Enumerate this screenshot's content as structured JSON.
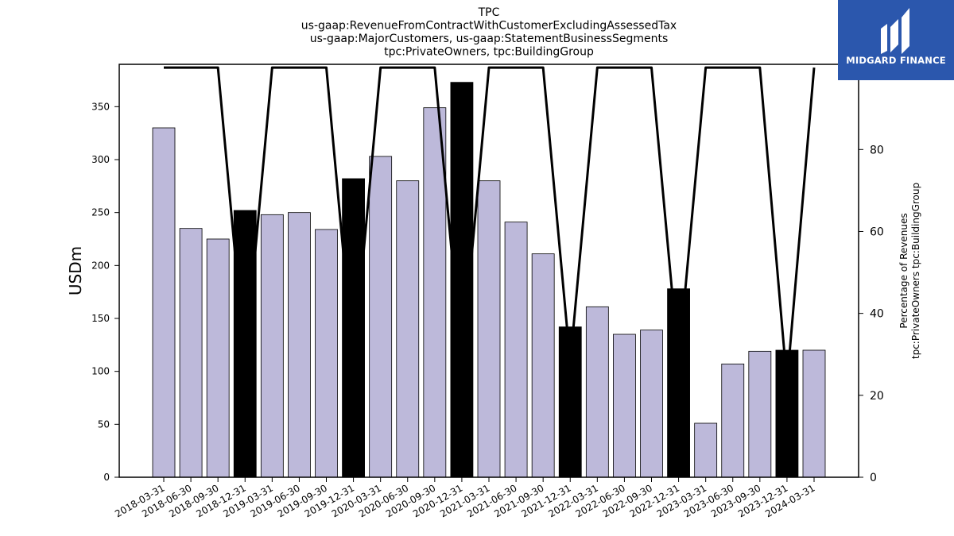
{
  "logo": {
    "text": "MIDGARD FINANCE",
    "icon": "midgard-logo-icon",
    "background": "#2b57ad"
  },
  "chart_data": {
    "type": "bar",
    "title": [
      "TPC",
      "us-gaap:RevenueFromContractWithCustomerExcludingAssessedTax",
      "us-gaap:MajorCustomers, us-gaap:StatementBusinessSegments",
      "tpc:PrivateOwners, tpc:BuildingGroup"
    ],
    "ylabel": "USDm",
    "y2label": [
      "Percentage of Revenues",
      "tpc:PrivateOwners tpc:BuildingGroup"
    ],
    "ylim": [
      0,
      390
    ],
    "y2lim": [
      0,
      100.8
    ],
    "yticks": [
      0,
      50,
      100,
      150,
      200,
      250,
      300,
      350
    ],
    "y2ticks": [
      0,
      20,
      40,
      60,
      80,
      100
    ],
    "grid": false,
    "categories": [
      "2018-03-31",
      "2018-06-30",
      "2018-09-30",
      "2018-12-31",
      "2019-03-31",
      "2019-06-30",
      "2019-09-30",
      "2019-12-31",
      "2020-03-31",
      "2020-06-30",
      "2020-09-30",
      "2020-12-31",
      "2021-03-31",
      "2021-06-30",
      "2021-09-30",
      "2021-12-31",
      "2022-03-31",
      "2022-06-30",
      "2022-09-30",
      "2022-12-31",
      "2023-03-31",
      "2023-06-30",
      "2023-09-30",
      "2023-12-31",
      "2024-03-31"
    ],
    "series": [
      {
        "kind": "bar",
        "values": [
          330,
          235,
          225,
          252,
          248,
          250,
          234,
          282,
          303,
          280,
          349,
          373,
          280,
          241,
          211,
          142,
          161,
          135,
          139,
          178,
          51,
          107,
          119,
          120,
          120
        ],
        "colors": [
          "#bdb9da",
          "#bdb9da",
          "#bdb9da",
          "#000000",
          "#bdb9da",
          "#bdb9da",
          "#bdb9da",
          "#000000",
          "#bdb9da",
          "#bdb9da",
          "#bdb9da",
          "#000000",
          "#bdb9da",
          "#bdb9da",
          "#bdb9da",
          "#000000",
          "#bdb9da",
          "#bdb9da",
          "#bdb9da",
          "#000000",
          "#bdb9da",
          "#bdb9da",
          "#bdb9da",
          "#000000",
          "#bdb9da"
        ]
      },
      {
        "kind": "line",
        "axis": "right",
        "color": "#000000",
        "values": [
          100,
          100,
          100,
          28,
          100,
          100,
          100,
          28,
          100,
          100,
          100,
          28,
          100,
          100,
          100,
          28,
          100,
          100,
          100,
          28,
          100,
          100,
          100,
          23,
          100
        ]
      }
    ]
  }
}
